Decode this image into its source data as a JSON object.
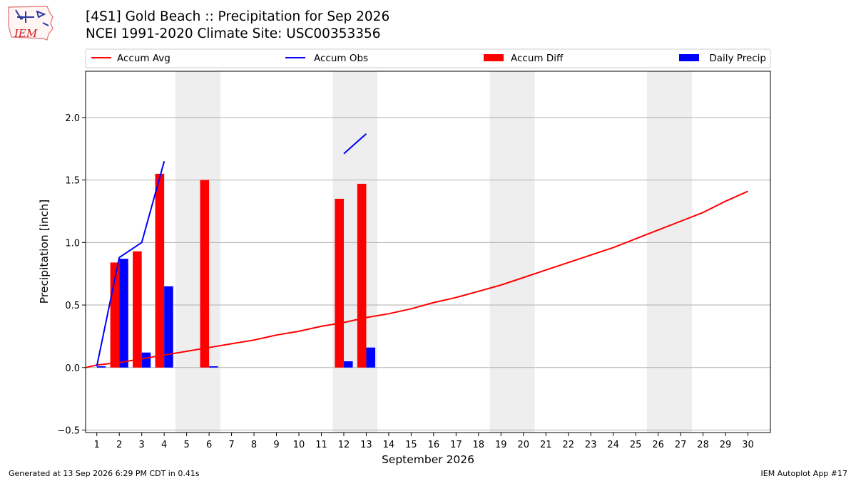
{
  "header": {
    "title": "[4S1] Gold Beach :: Precipitation for Sep 2026",
    "subtitle": "NCEI 1991-2020 Climate Site: USC00353356",
    "logo_text": "IEM"
  },
  "footer": {
    "generated": "Generated at 13 Sep 2026 6:29 PM CDT in 0.41s",
    "app": "IEM Autoplot App #17"
  },
  "chart_data": {
    "type": "bar",
    "title": "[4S1] Gold Beach :: Precipitation for Sep 2026",
    "xlabel": "September 2026",
    "ylabel": "Precipitation [inch]",
    "xlim": [
      0.5,
      31
    ],
    "ylim": [
      -0.52,
      2.37
    ],
    "yticks": [
      -0.5,
      0.0,
      0.5,
      1.0,
      1.5,
      2.0
    ],
    "ytick_labels": [
      "−0.5",
      "0.0",
      "0.5",
      "1.0",
      "1.5",
      "2.0"
    ],
    "x_ticks": [
      1,
      2,
      3,
      4,
      5,
      6,
      7,
      8,
      9,
      10,
      11,
      12,
      13,
      14,
      15,
      16,
      17,
      18,
      19,
      20,
      21,
      22,
      23,
      24,
      25,
      26,
      27,
      28,
      29,
      30
    ],
    "grid": "horizontal",
    "legend_position": "top",
    "weekend_shading": [
      [
        4.5,
        6.5
      ],
      [
        11.5,
        13.5
      ],
      [
        18.5,
        20.5
      ],
      [
        25.5,
        27.5
      ]
    ],
    "legend": [
      {
        "label": "Accum Avg",
        "kind": "line",
        "color": "#ff0000"
      },
      {
        "label": "Accum Obs",
        "kind": "line",
        "color": "#0000ff"
      },
      {
        "label": "Accum Diff",
        "kind": "bar",
        "color": "#ff0000"
      },
      {
        "label": "Daily Precip",
        "kind": "bar",
        "color": "#0000ff"
      }
    ],
    "series": [
      {
        "name": "Accum Avg",
        "kind": "line",
        "color": "#ff0000",
        "x": [
          0.5,
          1,
          2,
          3,
          4,
          5,
          6,
          7,
          8,
          9,
          10,
          11,
          12,
          13,
          14,
          15,
          16,
          17,
          18,
          19,
          20,
          21,
          22,
          23,
          24,
          25,
          26,
          27,
          28,
          29,
          30
        ],
        "values": [
          0.0,
          0.02,
          0.04,
          0.07,
          0.1,
          0.13,
          0.16,
          0.19,
          0.22,
          0.26,
          0.29,
          0.33,
          0.36,
          0.4,
          0.43,
          0.47,
          0.52,
          0.56,
          0.61,
          0.66,
          0.72,
          0.78,
          0.84,
          0.9,
          0.96,
          1.03,
          1.1,
          1.17,
          1.24,
          1.33,
          1.41
        ]
      },
      {
        "name": "Accum Obs",
        "kind": "line",
        "color": "#0000ff",
        "x": [
          1,
          2,
          3,
          4,
          5,
          6,
          7,
          8,
          9,
          10,
          11,
          12,
          13
        ],
        "values": [
          0.01,
          0.88,
          1.0,
          1.65,
          null,
          null,
          null,
          null,
          null,
          null,
          null,
          1.71,
          1.87
        ]
      },
      {
        "name": "Accum Diff",
        "kind": "bar",
        "color": "#ff0000",
        "x": [
          1,
          2,
          3,
          4,
          5,
          6,
          7,
          8,
          9,
          10,
          11,
          12,
          13
        ],
        "values": [
          0.0,
          0.84,
          0.93,
          1.55,
          0.0,
          1.5,
          0.0,
          0.0,
          0.0,
          0.0,
          0.0,
          1.35,
          1.47
        ]
      },
      {
        "name": "Daily Precip",
        "kind": "bar",
        "color": "#0000ff",
        "x": [
          1,
          2,
          3,
          4,
          5,
          6,
          7,
          8,
          9,
          10,
          11,
          12,
          13
        ],
        "values": [
          0.01,
          0.87,
          0.12,
          0.65,
          0.0,
          0.01,
          0.0,
          0.0,
          0.0,
          0.0,
          0.0,
          0.05,
          0.16
        ]
      }
    ]
  }
}
